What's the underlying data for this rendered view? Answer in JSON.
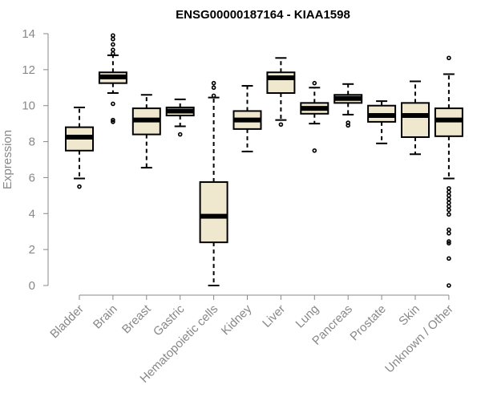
{
  "chart_data": {
    "type": "boxplot",
    "title": "ENSG00000187164 - KIAA1598",
    "xlabel": "",
    "ylabel": "Expression",
    "ylim": [
      0,
      14
    ],
    "yticks": [
      0,
      2,
      4,
      6,
      8,
      10,
      12,
      14
    ],
    "colors": {
      "box_fill": "#efe8cf",
      "stroke": "#000000",
      "axis": "#888888"
    },
    "categories": [
      "Bladder",
      "Brain",
      "Breast",
      "Gastric",
      "Hematopoietic cells",
      "Kidney",
      "Liver",
      "Lung",
      "Pancreas",
      "Prostate",
      "Skin",
      "Unknown / Other"
    ],
    "boxes": [
      {
        "name": "Bladder",
        "whisker_low": 5.95,
        "q1": 7.5,
        "median": 8.25,
        "q3": 8.8,
        "whisker_high": 9.9,
        "outliers": [
          5.5
        ]
      },
      {
        "name": "Brain",
        "whisker_low": 10.7,
        "q1": 11.25,
        "median": 11.6,
        "q3": 11.85,
        "whisker_high": 12.8,
        "outliers": [
          13.9,
          13.7,
          13.4,
          13.1,
          12.9,
          10.1,
          9.2,
          9.1
        ]
      },
      {
        "name": "Breast",
        "whisker_low": 6.55,
        "q1": 8.4,
        "median": 9.2,
        "q3": 9.85,
        "whisker_high": 10.6,
        "outliers": []
      },
      {
        "name": "Gastric",
        "whisker_low": 8.85,
        "q1": 9.45,
        "median": 9.7,
        "q3": 9.9,
        "whisker_high": 10.35,
        "outliers": [
          8.4
        ]
      },
      {
        "name": "Hematopoietic cells",
        "whisker_low": 0.0,
        "q1": 2.4,
        "median": 3.85,
        "q3": 5.75,
        "whisker_high": 10.45,
        "outliers": [
          11.25,
          11.0,
          10.55
        ]
      },
      {
        "name": "Kidney",
        "whisker_low": 7.45,
        "q1": 8.7,
        "median": 9.2,
        "q3": 9.7,
        "whisker_high": 11.1,
        "outliers": []
      },
      {
        "name": "Liver",
        "whisker_low": 9.2,
        "q1": 10.7,
        "median": 11.55,
        "q3": 11.85,
        "whisker_high": 12.65,
        "outliers": [
          8.95
        ]
      },
      {
        "name": "Lung",
        "whisker_low": 9.0,
        "q1": 9.55,
        "median": 9.85,
        "q3": 10.15,
        "whisker_high": 11.0,
        "outliers": [
          11.25,
          7.5
        ]
      },
      {
        "name": "Pancreas",
        "whisker_low": 9.5,
        "q1": 10.15,
        "median": 10.4,
        "q3": 10.6,
        "whisker_high": 11.2,
        "outliers": [
          9.05,
          8.9
        ]
      },
      {
        "name": "Prostate",
        "whisker_low": 7.9,
        "q1": 9.1,
        "median": 9.45,
        "q3": 10.0,
        "whisker_high": 10.25,
        "outliers": []
      },
      {
        "name": "Skin",
        "whisker_low": 7.3,
        "q1": 8.25,
        "median": 9.45,
        "q3": 10.15,
        "whisker_high": 11.35,
        "outliers": []
      },
      {
        "name": "Unknown / Other",
        "whisker_low": 5.95,
        "q1": 8.3,
        "median": 9.2,
        "q3": 9.85,
        "whisker_high": 11.75,
        "outliers": [
          12.65,
          5.4,
          5.2,
          5.0,
          4.8,
          4.6,
          4.4,
          4.2,
          3.95,
          3.1,
          2.9,
          2.45,
          2.35,
          1.5,
          0.0
        ]
      }
    ]
  }
}
